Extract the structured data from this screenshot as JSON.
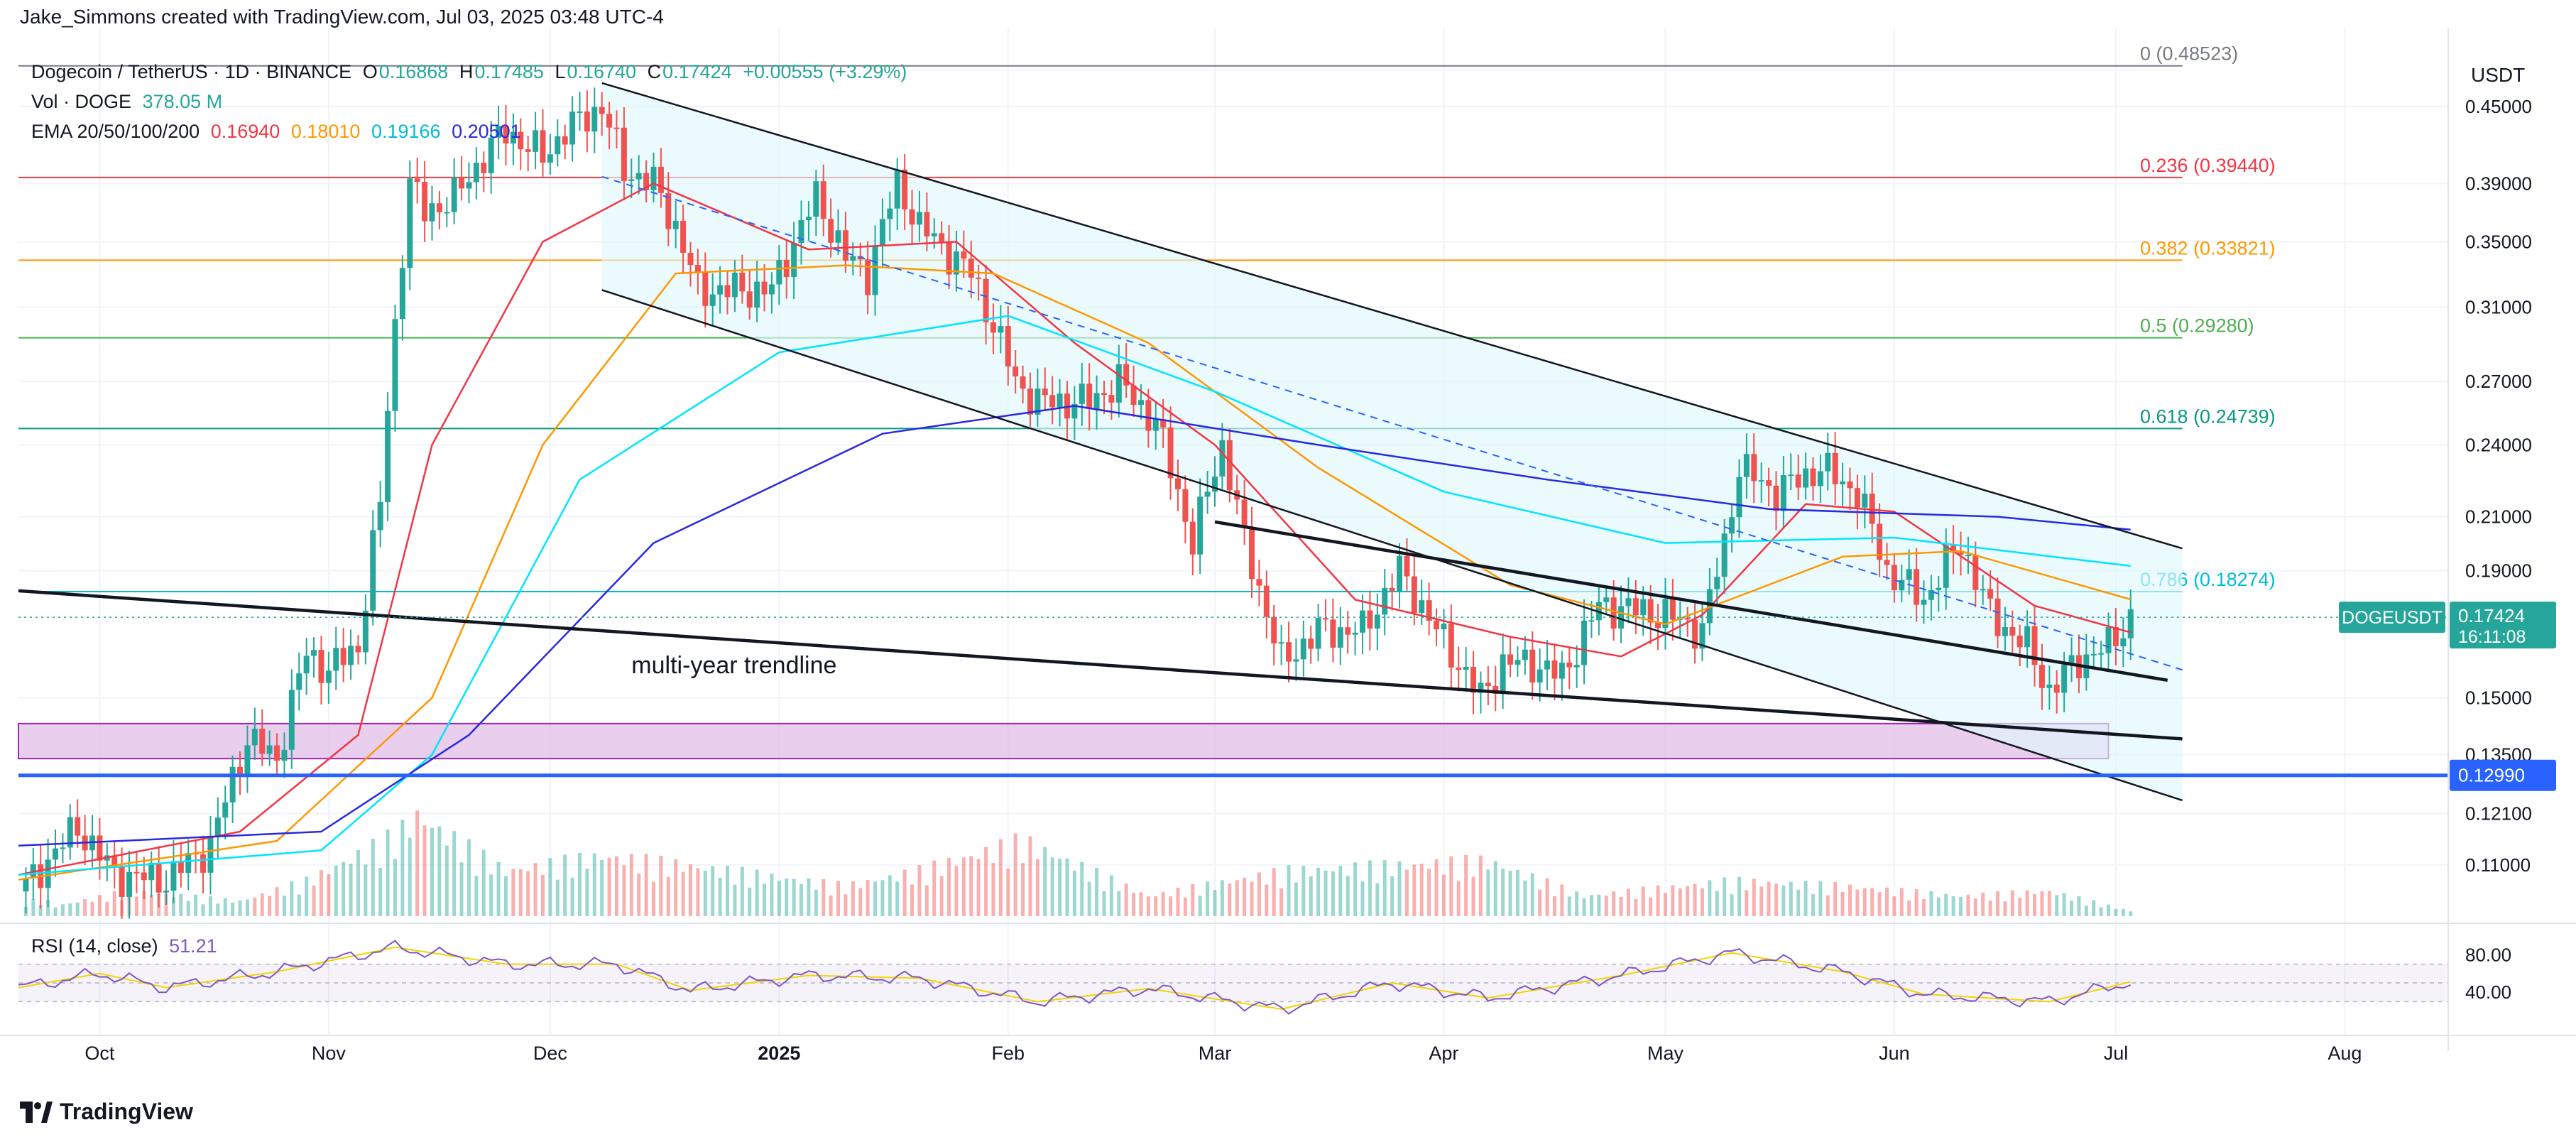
{
  "header": {
    "credit": "Jake_Simmons created with TradingView.com, Jul 03, 2025 03:48 UTC-4",
    "currency": "USDT"
  },
  "legend": {
    "symbol": "Dogecoin / TetherUS · 1D · BINANCE",
    "o_label": "O",
    "o": "0.16868",
    "h_label": "H",
    "h": "0.17485",
    "l_label": "L",
    "l": "0.16740",
    "c_label": "C",
    "c": "0.17424",
    "change": "+0.00555 (+3.29%)",
    "vol_label": "Vol · DOGE",
    "vol": "378.05 M",
    "ema_label": "EMA 20/50/100/200",
    "ema20": "0.16940",
    "ema50": "0.18010",
    "ema100": "0.19166",
    "ema200": "0.20501"
  },
  "rsi": {
    "label": "RSI (14, close)",
    "value": "51.21",
    "ticks": [
      "80.00",
      "40.00"
    ]
  },
  "footer": {
    "brand": "TradingView"
  },
  "colors": {
    "up": "#26a69a",
    "down": "#ef5350",
    "ema20": "#f23645",
    "ema50": "#ff9800",
    "ema100": "#00e5ff",
    "ema200": "#2929e0",
    "channel_fill": "#e0f7fa",
    "rsi_line": "#7e57c2",
    "rsi_ma": "#f5d400",
    "support": "#2962ff",
    "demand_zone": "#e1bee7",
    "price_badge": "#26a69a"
  },
  "chart_data": {
    "type": "candlestick",
    "symbol": "DOGEUSDT",
    "y_scale": "log",
    "ylim": [
      0.1,
      0.5
    ],
    "y_ticks": [
      "0.45000",
      "0.39000",
      "0.35000",
      "0.31000",
      "0.27000",
      "0.24000",
      "0.21000",
      "0.19000",
      "0.15000",
      "0.13500",
      "0.12100",
      "0.11000"
    ],
    "x_start": "2024-09-20",
    "x_end": "2025-08-15",
    "x_ticks": [
      {
        "label": "Oct",
        "date": "2024-10-01",
        "bold": false
      },
      {
        "label": "Nov",
        "date": "2024-11-01",
        "bold": false
      },
      {
        "label": "Dec",
        "date": "2024-12-01",
        "bold": false
      },
      {
        "label": "2025",
        "date": "2025-01-01",
        "bold": true
      },
      {
        "label": "Feb",
        "date": "2025-02-01",
        "bold": false
      },
      {
        "label": "Mar",
        "date": "2025-03-01",
        "bold": false
      },
      {
        "label": "Apr",
        "date": "2025-04-01",
        "bold": false
      },
      {
        "label": "May",
        "date": "2025-05-01",
        "bold": false
      },
      {
        "label": "Jun",
        "date": "2025-06-01",
        "bold": false
      },
      {
        "label": "Jul",
        "date": "2025-07-01",
        "bold": false
      },
      {
        "label": "Aug",
        "date": "2025-08-01",
        "bold": false
      }
    ],
    "close_series": [
      [
        "2024-09-20",
        0.104
      ],
      [
        "2024-09-28",
        0.118
      ],
      [
        "2024-10-03",
        0.108
      ],
      [
        "2024-10-10",
        0.107
      ],
      [
        "2024-10-16",
        0.114
      ],
      [
        "2024-10-21",
        0.139
      ],
      [
        "2024-10-25",
        0.134
      ],
      [
        "2024-10-29",
        0.163
      ],
      [
        "2024-11-01",
        0.158
      ],
      [
        "2024-11-05",
        0.165
      ],
      [
        "2024-11-08",
        0.215
      ],
      [
        "2024-11-10",
        0.3
      ],
      [
        "2024-11-12",
        0.39
      ],
      [
        "2024-11-14",
        0.37
      ],
      [
        "2024-11-18",
        0.38
      ],
      [
        "2024-11-22",
        0.41
      ],
      [
        "2024-11-25",
        0.43
      ],
      [
        "2024-11-30",
        0.41
      ],
      [
        "2024-12-03",
        0.43
      ],
      [
        "2024-12-08",
        0.45
      ],
      [
        "2024-12-11",
        0.4
      ],
      [
        "2024-12-15",
        0.39
      ],
      [
        "2024-12-18",
        0.36
      ],
      [
        "2024-12-21",
        0.32
      ],
      [
        "2024-12-27",
        0.32
      ],
      [
        "2024-12-31",
        0.32
      ],
      [
        "2025-01-06",
        0.38
      ],
      [
        "2025-01-10",
        0.34
      ],
      [
        "2025-01-13",
        0.33
      ],
      [
        "2025-01-17",
        0.39
      ],
      [
        "2025-01-20",
        0.36
      ],
      [
        "2025-01-27",
        0.33
      ],
      [
        "2025-02-02",
        0.27
      ],
      [
        "2025-02-05",
        0.26
      ],
      [
        "2025-02-12",
        0.26
      ],
      [
        "2025-02-16",
        0.27
      ],
      [
        "2025-02-21",
        0.25
      ],
      [
        "2025-02-26",
        0.2
      ],
      [
        "2025-03-02",
        0.24
      ],
      [
        "2025-03-05",
        0.2
      ],
      [
        "2025-03-10",
        0.16
      ],
      [
        "2025-03-15",
        0.17
      ],
      [
        "2025-03-21",
        0.17
      ],
      [
        "2025-03-26",
        0.19
      ],
      [
        "2025-03-31",
        0.17
      ],
      [
        "2025-04-06",
        0.15
      ],
      [
        "2025-04-09",
        0.16
      ],
      [
        "2025-04-13",
        0.16
      ],
      [
        "2025-04-17",
        0.156
      ],
      [
        "2025-04-22",
        0.178
      ],
      [
        "2025-04-26",
        0.177
      ],
      [
        "2025-05-01",
        0.175
      ],
      [
        "2025-05-06",
        0.17
      ],
      [
        "2025-05-09",
        0.2
      ],
      [
        "2025-05-11",
        0.23
      ],
      [
        "2025-05-16",
        0.22
      ],
      [
        "2025-05-22",
        0.23
      ],
      [
        "2025-05-27",
        0.22
      ],
      [
        "2025-05-31",
        0.19
      ],
      [
        "2025-06-05",
        0.18
      ],
      [
        "2025-06-10",
        0.2
      ],
      [
        "2025-06-14",
        0.175
      ],
      [
        "2025-06-19",
        0.165
      ],
      [
        "2025-06-22",
        0.152
      ],
      [
        "2025-06-26",
        0.161
      ],
      [
        "2025-06-30",
        0.165
      ],
      [
        "2025-07-03",
        0.17424
      ]
    ],
    "ema_series": {
      "ema20": [
        [
          "2024-09-20",
          0.108
        ],
        [
          "2024-10-20",
          0.117
        ],
        [
          "2024-11-05",
          0.14
        ],
        [
          "2024-11-15",
          0.24
        ],
        [
          "2024-11-30",
          0.35
        ],
        [
          "2024-12-15",
          0.39
        ],
        [
          "2025-01-05",
          0.345
        ],
        [
          "2025-01-25",
          0.35
        ],
        [
          "2025-02-10",
          0.29
        ],
        [
          "2025-03-01",
          0.24
        ],
        [
          "2025-03-20",
          0.18
        ],
        [
          "2025-04-10",
          0.168
        ],
        [
          "2025-04-25",
          0.162
        ],
        [
          "2025-05-06",
          0.175
        ],
        [
          "2025-05-20",
          0.215
        ],
        [
          "2025-06-01",
          0.212
        ],
        [
          "2025-06-20",
          0.178
        ],
        [
          "2025-07-03",
          0.1694
        ]
      ],
      "ema50": [
        [
          "2024-09-20",
          0.107
        ],
        [
          "2024-10-25",
          0.115
        ],
        [
          "2024-11-15",
          0.15
        ],
        [
          "2024-11-30",
          0.24
        ],
        [
          "2024-12-18",
          0.33
        ],
        [
          "2025-01-10",
          0.335
        ],
        [
          "2025-01-30",
          0.33
        ],
        [
          "2025-02-20",
          0.29
        ],
        [
          "2025-03-15",
          0.23
        ],
        [
          "2025-04-10",
          0.185
        ],
        [
          "2025-05-01",
          0.172
        ],
        [
          "2025-05-25",
          0.195
        ],
        [
          "2025-06-10",
          0.197
        ],
        [
          "2025-07-03",
          0.1801
        ]
      ],
      "ema100": [
        [
          "2024-09-20",
          0.108
        ],
        [
          "2024-10-31",
          0.113
        ],
        [
          "2024-11-15",
          0.135
        ],
        [
          "2024-12-05",
          0.225
        ],
        [
          "2025-01-01",
          0.285
        ],
        [
          "2025-02-01",
          0.305
        ],
        [
          "2025-03-01",
          0.265
        ],
        [
          "2025-04-01",
          0.22
        ],
        [
          "2025-05-01",
          0.2
        ],
        [
          "2025-06-01",
          0.202
        ],
        [
          "2025-07-03",
          0.19166
        ]
      ],
      "ema200": [
        [
          "2024-09-20",
          0.114
        ],
        [
          "2024-10-31",
          0.117
        ],
        [
          "2024-11-20",
          0.14
        ],
        [
          "2024-12-15",
          0.2
        ],
        [
          "2025-01-15",
          0.245
        ],
        [
          "2025-02-10",
          0.258
        ],
        [
          "2025-03-15",
          0.24
        ],
        [
          "2025-04-15",
          0.225
        ],
        [
          "2025-05-15",
          0.213
        ],
        [
          "2025-06-15",
          0.21
        ],
        [
          "2025-07-03",
          0.20501
        ]
      ]
    },
    "volume_series": [
      [
        "2024-09-25",
        0.1
      ],
      [
        "2024-10-05",
        0.25
      ],
      [
        "2024-10-20",
        0.15
      ],
      [
        "2024-10-29",
        0.35
      ],
      [
        "2024-11-10",
        0.8
      ],
      [
        "2024-11-13",
        1.0
      ],
      [
        "2024-11-25",
        0.45
      ],
      [
        "2024-12-08",
        0.6
      ],
      [
        "2024-12-20",
        0.5
      ],
      [
        "2025-01-10",
        0.3
      ],
      [
        "2025-01-20",
        0.45
      ],
      [
        "2025-02-03",
        0.75
      ],
      [
        "2025-02-20",
        0.2
      ],
      [
        "2025-03-03",
        0.35
      ],
      [
        "2025-03-11",
        0.45
      ],
      [
        "2025-04-07",
        0.55
      ],
      [
        "2025-04-20",
        0.2
      ],
      [
        "2025-05-10",
        0.35
      ],
      [
        "2025-05-25",
        0.3
      ],
      [
        "2025-06-10",
        0.2
      ],
      [
        "2025-06-22",
        0.25
      ],
      [
        "2025-07-03",
        0.05
      ]
    ],
    "rsi_series": [
      [
        "2024-09-20",
        45
      ],
      [
        "2024-10-01",
        60
      ],
      [
        "2024-10-10",
        45
      ],
      [
        "2024-10-25",
        62
      ],
      [
        "2024-11-10",
        88
      ],
      [
        "2024-11-25",
        70
      ],
      [
        "2024-12-10",
        70
      ],
      [
        "2024-12-20",
        42
      ],
      [
        "2025-01-05",
        58
      ],
      [
        "2025-01-20",
        55
      ],
      [
        "2025-02-05",
        30
      ],
      [
        "2025-02-20",
        44
      ],
      [
        "2025-03-10",
        22
      ],
      [
        "2025-03-25",
        50
      ],
      [
        "2025-04-07",
        34
      ],
      [
        "2025-04-25",
        58
      ],
      [
        "2025-05-10",
        82
      ],
      [
        "2025-05-25",
        62
      ],
      [
        "2025-06-05",
        38
      ],
      [
        "2025-06-22",
        30
      ],
      [
        "2025-07-03",
        51.21
      ]
    ],
    "rsi_ylim": [
      0,
      100
    ],
    "fib_levels": [
      {
        "label": "0 (0.48523)",
        "value": 0.48523,
        "color": "#787b86"
      },
      {
        "label": "0.236 (0.39440)",
        "value": 0.3944,
        "color": "#f23645"
      },
      {
        "label": "0.382 (0.33821)",
        "value": 0.33821,
        "color": "#ff9800"
      },
      {
        "label": "0.5 (0.29280)",
        "value": 0.2928,
        "color": "#4caf50"
      },
      {
        "label": "0.618 (0.24739)",
        "value": 0.24739,
        "color": "#089981"
      },
      {
        "label": "0.786 (0.18274)",
        "value": 0.18274,
        "color": "#00bcd4"
      }
    ],
    "support_level": {
      "label": "0.12990",
      "value": 0.1299
    },
    "last_price": {
      "symbol": "DOGEUSDT",
      "value": "0.17424",
      "countdown": "16:11:08"
    },
    "annotations": [
      {
        "text": "multi-year trendline",
        "date": "2024-12-12",
        "value": 0.157
      }
    ]
  }
}
